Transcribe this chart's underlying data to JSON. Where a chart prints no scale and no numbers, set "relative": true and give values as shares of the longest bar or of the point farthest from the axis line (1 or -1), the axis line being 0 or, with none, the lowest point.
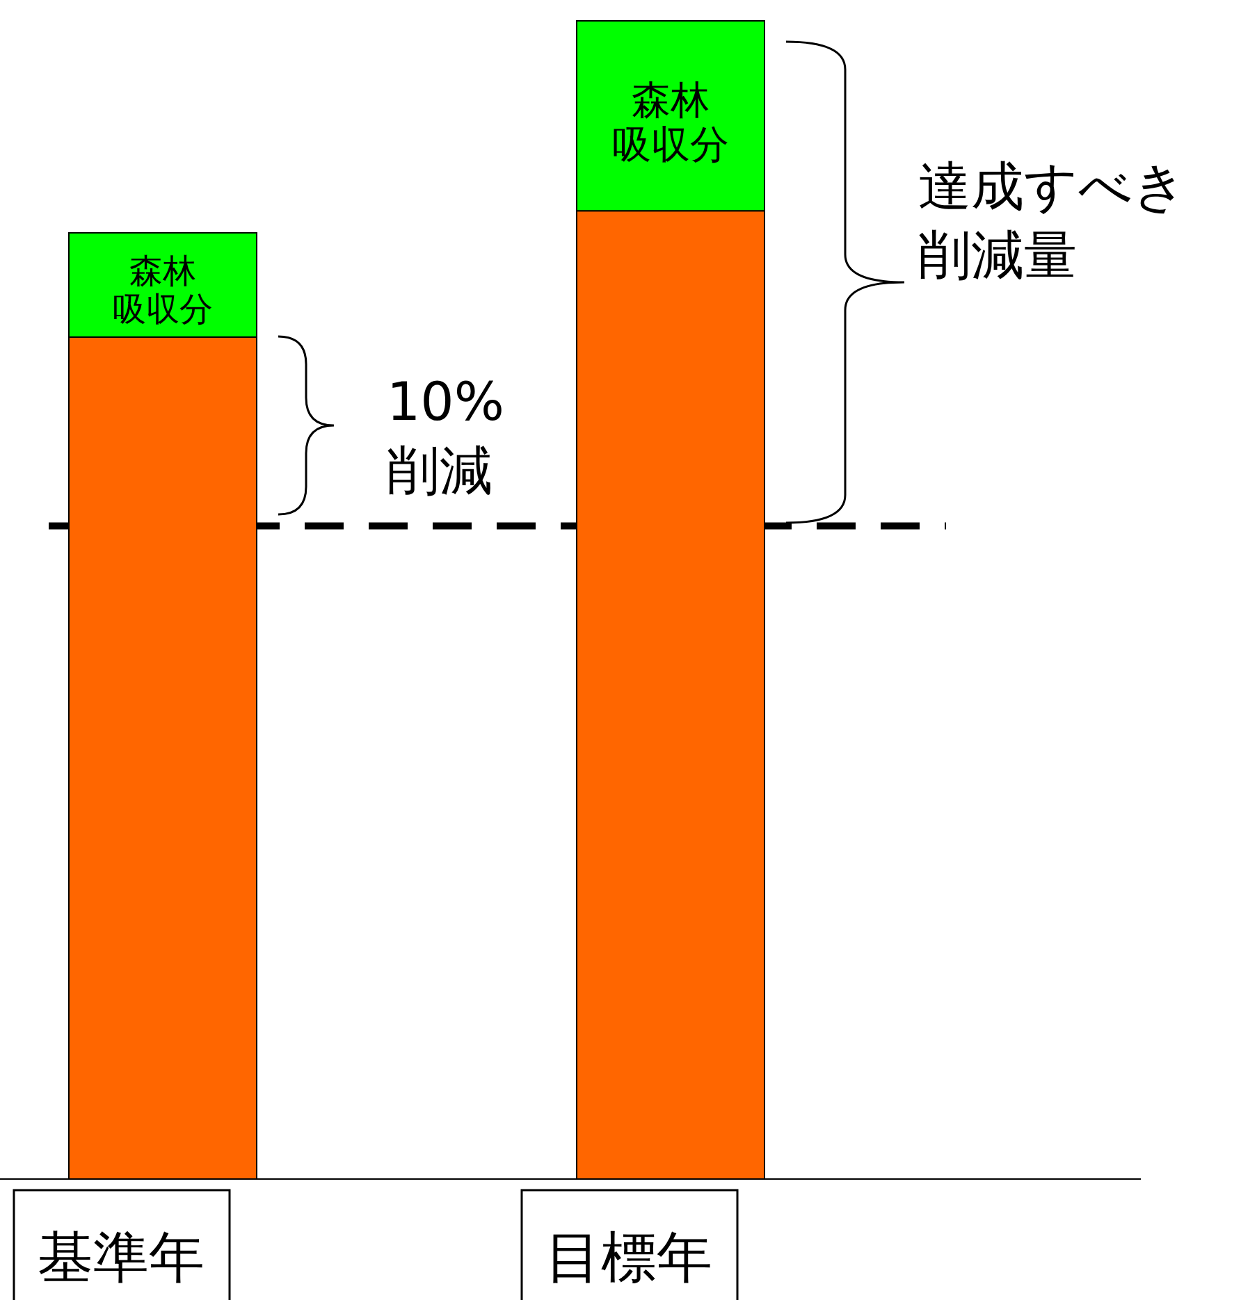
{
  "chart_data": {
    "type": "bar",
    "relative": true,
    "stacked": true,
    "categories": [
      "基準年",
      "目標年"
    ],
    "series": [
      {
        "color": "#ff6600",
        "values": [
          0.727,
          0.836
        ]
      },
      {
        "name": "森林吸収分",
        "color": "#00ff00",
        "values": [
          0.09,
          0.164
        ]
      }
    ],
    "ref_lines": [
      {
        "axis": "y",
        "value": 0.564,
        "color": "#000000",
        "line_style": "dashed"
      }
    ],
    "annotations": [
      "10%\n削減",
      "達成すべき削減量"
    ]
  }
}
